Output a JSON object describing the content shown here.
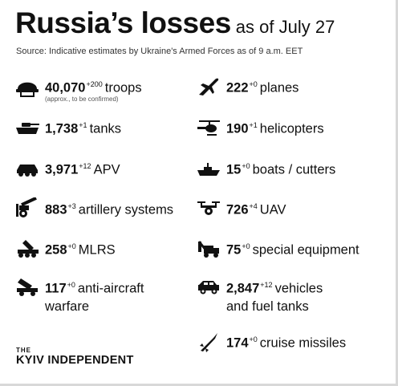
{
  "header": {
    "title": "Russia’s losses",
    "subtitle": "as of July 27",
    "source": "Source: Indicative estimates by Ukraine's Armed Forces as of 9 a.m. EET"
  },
  "items": [
    {
      "icon": "helmet-icon",
      "value": "40,070",
      "delta": "+200",
      "label": "troops",
      "note": "(approx., to be confirmed)"
    },
    {
      "icon": "plane-icon",
      "value": "222",
      "delta": "+0",
      "label": "planes"
    },
    {
      "icon": "tank-icon",
      "value": "1,738",
      "delta": "+1",
      "label": "tanks"
    },
    {
      "icon": "helicopter-icon",
      "value": "190",
      "delta": "+1",
      "label": "helicopters"
    },
    {
      "icon": "apv-icon",
      "value": "3,971",
      "delta": "+12",
      "label": "APV"
    },
    {
      "icon": "boat-icon",
      "value": "15",
      "delta": "+0",
      "label": "boats / cutters"
    },
    {
      "icon": "artillery-icon",
      "value": "883",
      "delta": "+3",
      "label": "artillery systems"
    },
    {
      "icon": "drone-icon",
      "value": "726",
      "delta": "+4",
      "label": "UAV"
    },
    {
      "icon": "mlrs-icon",
      "value": "258",
      "delta": "+0",
      "label": "MLRS"
    },
    {
      "icon": "special-equipment-icon",
      "value": "75",
      "delta": "+0",
      "label": "special equipment"
    },
    {
      "icon": "anti-aircraft-icon",
      "value": "117",
      "delta": "+0",
      "label": "anti-aircraft",
      "label2": "warfare"
    },
    {
      "icon": "vehicle-icon",
      "value": "2,847",
      "delta": "+12",
      "label": "vehicles",
      "label2": "and fuel tanks"
    },
    {
      "icon": "missile-icon",
      "value": "174",
      "delta": "+0",
      "label": "cruise missiles"
    }
  ],
  "brand": {
    "the": "THE",
    "name": "KYIV INDEPENDENT"
  }
}
